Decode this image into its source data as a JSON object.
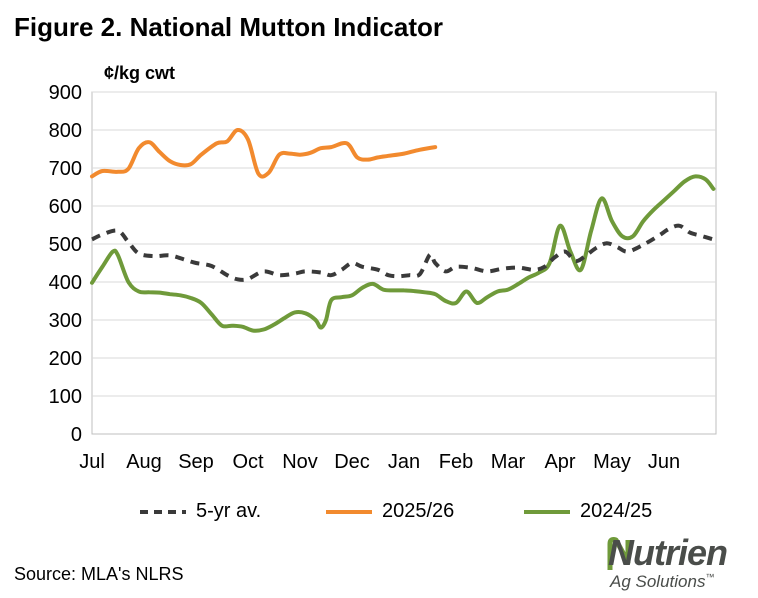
{
  "page": {
    "title": "Figure 2. National Mutton Indicator",
    "unit_label": "¢/kg cwt",
    "source": "Source: MLA's NLRS",
    "logo_name": "Nutrien",
    "logo_sub": "Ag Solutions",
    "logo_tm": "™"
  },
  "colors": {
    "series_5yr": "#3a3a3a",
    "series_2025": "#f28a2e",
    "series_2024": "#6f9a3a",
    "grid": "#d9d9d9",
    "axis": "#bfbfbf"
  },
  "chart_data": {
    "type": "line",
    "title": "Figure 2. National Mutton Indicator",
    "ylabel": "¢/kg cwt",
    "xlabel": "",
    "ylim": [
      0,
      900
    ],
    "yticks": [
      0,
      100,
      200,
      300,
      400,
      500,
      600,
      700,
      800,
      900
    ],
    "xlim": [
      0,
      12
    ],
    "categories": [
      "Jul",
      "Aug",
      "Sep",
      "Oct",
      "Nov",
      "Dec",
      "Jan",
      "Feb",
      "Mar",
      "Apr",
      "May",
      "Jun"
    ],
    "grid": true,
    "legend_position": "bottom",
    "series": [
      {
        "name": "5-yr av.",
        "style": "dashed",
        "x": [
          0,
          0.2,
          0.5,
          0.7,
          0.9,
          1.2,
          1.5,
          1.8,
          2.0,
          2.3,
          2.6,
          2.8,
          3.0,
          3.3,
          3.6,
          3.9,
          4.1,
          4.4,
          4.6,
          4.8,
          5.0,
          5.2,
          5.5,
          5.7,
          5.9,
          6.1,
          6.3,
          6.5,
          6.6,
          6.8,
          7.0,
          7.3,
          7.6,
          7.9,
          8.2,
          8.5,
          8.7,
          8.9,
          9.1,
          9.3,
          9.5,
          9.7,
          9.9,
          10.1,
          10.3,
          10.6,
          10.9,
          11.1,
          11.3,
          11.5,
          11.7,
          11.95
        ],
        "values": [
          512,
          525,
          535,
          505,
          475,
          468,
          470,
          458,
          450,
          442,
          418,
          407,
          408,
          428,
          418,
          422,
          428,
          425,
          418,
          432,
          450,
          440,
          432,
          418,
          415,
          418,
          420,
          472,
          450,
          428,
          440,
          437,
          428,
          435,
          438,
          432,
          440,
          465,
          480,
          455,
          470,
          490,
          502,
          492,
          480,
          498,
          522,
          540,
          548,
          530,
          522,
          512
        ]
      },
      {
        "name": "2025/26",
        "style": "solid",
        "x": [
          0,
          0.2,
          0.5,
          0.7,
          0.9,
          1.1,
          1.3,
          1.5,
          1.7,
          1.9,
          2.1,
          2.4,
          2.6,
          2.8,
          3.0,
          3.2,
          3.4,
          3.6,
          3.8,
          4.0,
          4.2,
          4.4,
          4.6,
          4.9,
          5.1,
          5.3,
          5.5,
          5.7,
          6.0,
          6.3,
          6.6
        ],
        "values": [
          678,
          692,
          690,
          698,
          752,
          768,
          742,
          718,
          708,
          710,
          735,
          765,
          770,
          800,
          775,
          685,
          688,
          735,
          738,
          735,
          740,
          752,
          755,
          765,
          728,
          722,
          728,
          732,
          738,
          748,
          755
        ]
      },
      {
        "name": "2024/25",
        "style": "solid",
        "x": [
          0,
          0.2,
          0.4,
          0.5,
          0.7,
          0.9,
          1.1,
          1.3,
          1.5,
          1.7,
          1.9,
          2.1,
          2.3,
          2.5,
          2.7,
          2.9,
          3.1,
          3.3,
          3.5,
          3.7,
          3.9,
          4.1,
          4.3,
          4.4,
          4.5,
          4.6,
          4.8,
          5.0,
          5.2,
          5.4,
          5.6,
          5.8,
          6.0,
          6.2,
          6.4,
          6.6,
          6.8,
          7.0,
          7.2,
          7.4,
          7.6,
          7.8,
          8.0,
          8.2,
          8.4,
          8.6,
          8.8,
          9.0,
          9.2,
          9.4,
          9.6,
          9.8,
          10.0,
          10.2,
          10.4,
          10.6,
          10.8,
          11.0,
          11.2,
          11.4,
          11.6,
          11.8,
          11.95
        ],
        "values": [
          398,
          440,
          480,
          470,
          400,
          375,
          373,
          372,
          368,
          365,
          358,
          345,
          315,
          285,
          285,
          282,
          272,
          275,
          288,
          305,
          320,
          318,
          300,
          280,
          300,
          352,
          360,
          365,
          385,
          395,
          380,
          378,
          378,
          376,
          373,
          368,
          350,
          345,
          375,
          345,
          360,
          375,
          380,
          395,
          412,
          425,
          450,
          548,
          480,
          432,
          535,
          620,
          560,
          520,
          520,
          560,
          590,
          615,
          640,
          665,
          678,
          670,
          645
        ]
      }
    ]
  }
}
